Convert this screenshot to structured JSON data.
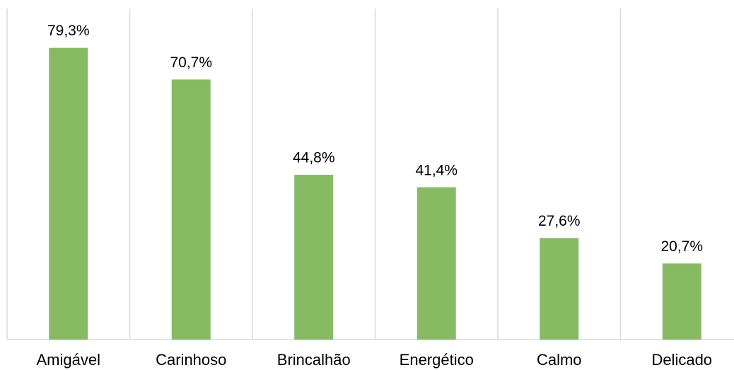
{
  "chart_data": {
    "type": "bar",
    "categories": [
      "Amigável",
      "Carinhoso",
      "Brincalhão",
      "Energético",
      "Calmo",
      "Delicado"
    ],
    "values": [
      79.3,
      70.7,
      44.8,
      41.4,
      27.6,
      20.7
    ],
    "value_labels": [
      "79,3%",
      "70,7%",
      "44,8%",
      "41,4%",
      "27,6%",
      "20,7%"
    ],
    "color": "#87bb62"
  }
}
